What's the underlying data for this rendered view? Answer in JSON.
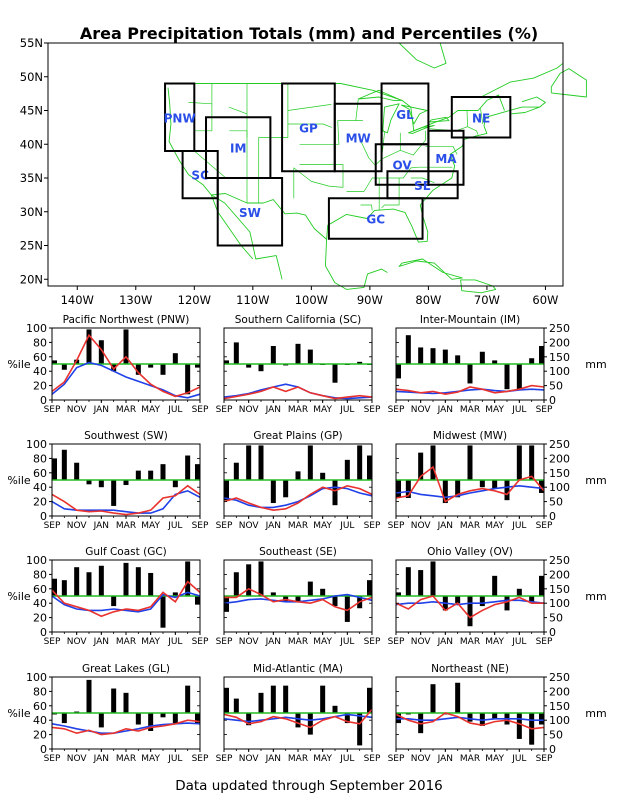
{
  "title": "Area Precipitation Totals (mm) and Percentiles (%)",
  "footer": "Data updated through September 2016",
  "colors": {
    "bar": "#000000",
    "percentile_line": "#e8322e",
    "normal_line": "#2040e8",
    "ref_line": "#22bb22",
    "map_lines": "#22cc22",
    "region_label": "#2a4ee8"
  },
  "map": {
    "lat_ticks": [
      "55N",
      "50N",
      "45N",
      "40N",
      "35N",
      "30N",
      "25N",
      "20N"
    ],
    "lon_ticks": [
      "140W",
      "130W",
      "120W",
      "110W",
      "100W",
      "90W",
      "80W",
      "70W",
      "60W"
    ],
    "regions": [
      {
        "code": "PNW",
        "lon": [
          -125,
          -120
        ],
        "lat": [
          39,
          49
        ]
      },
      {
        "code": "SC",
        "lon": [
          -122,
          -116
        ],
        "lat": [
          32,
          39
        ]
      },
      {
        "code": "IM",
        "lon": [
          -118,
          -107
        ],
        "lat": [
          35,
          44
        ]
      },
      {
        "code": "SW",
        "lon": [
          -116,
          -105
        ],
        "lat": [
          25,
          35
        ]
      },
      {
        "code": "GP",
        "lon": [
          -105,
          -96
        ],
        "lat": [
          36,
          49
        ]
      },
      {
        "code": "MW",
        "lon": [
          -96,
          -88
        ],
        "lat": [
          36,
          46
        ]
      },
      {
        "code": "GL",
        "lon": [
          -88,
          -80
        ],
        "lat": [
          40,
          49
        ]
      },
      {
        "code": "OV",
        "lon": [
          -89,
          -80
        ],
        "lat": [
          34,
          40
        ]
      },
      {
        "code": "SE",
        "lon": [
          -87,
          -75
        ],
        "lat": [
          32,
          36
        ]
      },
      {
        "code": "GC",
        "lon": [
          -97,
          -81
        ],
        "lat": [
          26,
          32
        ]
      },
      {
        "code": "MA",
        "lon": [
          -80,
          -74
        ],
        "lat": [
          34,
          42
        ]
      },
      {
        "code": "NE",
        "lon": [
          -76,
          -66
        ],
        "lat": [
          41,
          47
        ]
      }
    ]
  },
  "panel_axes": {
    "x_ticks": [
      "SEP",
      "NOV",
      "JAN",
      "MAR",
      "MAY",
      "JUL",
      "SEP"
    ],
    "left_ticks": [
      "0",
      "20",
      "40",
      "60",
      "80",
      "100"
    ],
    "right_ticks": [
      "0",
      "50",
      "100",
      "150",
      "200",
      "250"
    ],
    "left_label": "%ile",
    "right_label": "mm"
  },
  "chart_data": [
    {
      "type": "bar",
      "title": "Pacific Northwest (PNW)",
      "ylim": [
        0,
        100
      ],
      "y2lim": [
        0,
        250
      ],
      "bars": [
        55,
        42,
        56,
        98,
        83,
        40,
        98,
        35,
        45,
        35,
        65,
        8,
        45
      ],
      "percentile": [
        12,
        25,
        55,
        90,
        70,
        43,
        60,
        38,
        22,
        12,
        5,
        10,
        18
      ],
      "normal": [
        8,
        22,
        45,
        52,
        48,
        40,
        32,
        26,
        20,
        14,
        6,
        3,
        8
      ]
    },
    {
      "type": "bar",
      "title": "Southern California (SC)",
      "ylim": [
        0,
        100
      ],
      "y2lim": [
        0,
        250
      ],
      "bars": [
        55,
        80,
        45,
        40,
        75,
        48,
        78,
        70,
        50,
        24,
        50,
        53,
        50
      ],
      "percentile": [
        2,
        5,
        8,
        12,
        18,
        12,
        18,
        10,
        6,
        2,
        4,
        6,
        4
      ],
      "normal": [
        4,
        6,
        9,
        14,
        18,
        22,
        18,
        10,
        6,
        3,
        2,
        3,
        4
      ]
    },
    {
      "type": "bar",
      "title": "Inter-Mountain (IM)",
      "ylim": [
        0,
        100
      ],
      "y2lim": [
        0,
        250
      ],
      "bars": [
        30,
        90,
        73,
        72,
        70,
        62,
        23,
        67,
        55,
        15,
        15,
        58,
        75
      ],
      "percentile": [
        15,
        13,
        10,
        12,
        8,
        11,
        18,
        15,
        10,
        12,
        15,
        20,
        18
      ],
      "normal": [
        12,
        11,
        10,
        9,
        10,
        12,
        14,
        15,
        13,
        12,
        14,
        15,
        14
      ]
    },
    {
      "type": "bar",
      "title": "Southwest (SW)",
      "ylim": [
        0,
        100
      ],
      "y2lim": [
        0,
        250
      ],
      "bars": [
        80,
        92,
        74,
        44,
        40,
        14,
        43,
        63,
        63,
        72,
        40,
        84,
        72
      ],
      "percentile": [
        30,
        20,
        8,
        6,
        7,
        4,
        2,
        4,
        8,
        25,
        28,
        42,
        30
      ],
      "normal": [
        20,
        10,
        8,
        8,
        8,
        8,
        6,
        4,
        4,
        10,
        30,
        35,
        26
      ]
    },
    {
      "type": "bar",
      "title": "Great Plains (GP)",
      "ylim": [
        0,
        100
      ],
      "y2lim": [
        0,
        250
      ],
      "bars": [
        22,
        74,
        98,
        98,
        18,
        26,
        62,
        98,
        60,
        15,
        78,
        98,
        84
      ],
      "percentile": [
        20,
        25,
        18,
        12,
        8,
        10,
        18,
        30,
        40,
        35,
        42,
        38,
        30
      ],
      "normal": [
        25,
        22,
        15,
        12,
        12,
        15,
        20,
        28,
        38,
        40,
        38,
        32,
        28
      ]
    },
    {
      "type": "bar",
      "title": "Midwest (MW)",
      "ylim": [
        0,
        100
      ],
      "y2lim": [
        0,
        250
      ],
      "bars": [
        25,
        25,
        88,
        98,
        18,
        26,
        98,
        40,
        38,
        22,
        98,
        98,
        32
      ],
      "percentile": [
        25,
        28,
        55,
        68,
        20,
        30,
        35,
        38,
        35,
        30,
        50,
        55,
        35
      ],
      "normal": [
        32,
        34,
        30,
        28,
        26,
        28,
        32,
        35,
        38,
        40,
        42,
        40,
        38
      ]
    },
    {
      "type": "bar",
      "title": "Gulf Coast (GC)",
      "ylim": [
        0,
        100
      ],
      "y2lim": [
        0,
        250
      ],
      "bars": [
        74,
        72,
        90,
        83,
        92,
        36,
        96,
        90,
        82,
        6,
        55,
        98,
        38
      ],
      "percentile": [
        58,
        40,
        35,
        30,
        22,
        28,
        32,
        30,
        35,
        55,
        42,
        70,
        55
      ],
      "normal": [
        50,
        38,
        32,
        30,
        30,
        32,
        30,
        28,
        32,
        52,
        48,
        55,
        50
      ]
    },
    {
      "type": "bar",
      "title": "Southeast (SE)",
      "ylim": [
        0,
        100
      ],
      "y2lim": [
        0,
        250
      ],
      "bars": [
        28,
        83,
        94,
        98,
        55,
        42,
        42,
        70,
        60,
        36,
        14,
        33,
        72
      ],
      "percentile": [
        48,
        48,
        60,
        52,
        42,
        45,
        42,
        40,
        45,
        35,
        30,
        42,
        48
      ],
      "normal": [
        40,
        42,
        45,
        46,
        44,
        42,
        42,
        44,
        46,
        50,
        52,
        48,
        44
      ]
    },
    {
      "type": "bar",
      "title": "Ohio Valley (OV)",
      "ylim": [
        0,
        100
      ],
      "y2lim": [
        0,
        250
      ],
      "bars": [
        55,
        90,
        86,
        98,
        30,
        40,
        8,
        36,
        78,
        30,
        60,
        40,
        78
      ],
      "percentile": [
        40,
        32,
        45,
        50,
        30,
        40,
        20,
        30,
        38,
        42,
        48,
        40,
        40
      ],
      "normal": [
        38,
        40,
        40,
        42,
        40,
        38,
        40,
        40,
        42,
        44,
        44,
        42,
        40
      ]
    },
    {
      "type": "bar",
      "title": "Great Lakes (GL)",
      "ylim": [
        0,
        100
      ],
      "y2lim": [
        0,
        250
      ],
      "bars": [
        48,
        36,
        52,
        96,
        30,
        84,
        78,
        34,
        25,
        44,
        36,
        88,
        35
      ],
      "percentile": [
        30,
        28,
        22,
        26,
        20,
        22,
        28,
        25,
        30,
        32,
        35,
        40,
        38
      ],
      "normal": [
        35,
        32,
        28,
        25,
        22,
        22,
        25,
        28,
        32,
        34,
        35,
        36,
        35
      ]
    },
    {
      "type": "bar",
      "title": "Mid-Atlantic (MA)",
      "ylim": [
        0,
        100
      ],
      "y2lim": [
        0,
        250
      ],
      "bars": [
        85,
        70,
        33,
        78,
        88,
        88,
        30,
        20,
        88,
        60,
        36,
        5,
        85
      ],
      "percentile": [
        48,
        44,
        35,
        38,
        45,
        42,
        36,
        30,
        40,
        45,
        38,
        35,
        55
      ],
      "normal": [
        42,
        40,
        38,
        40,
        42,
        44,
        42,
        40,
        42,
        45,
        48,
        46,
        44
      ]
    },
    {
      "type": "bar",
      "title": "Northeast (NE)",
      "ylim": [
        0,
        100
      ],
      "y2lim": [
        0,
        250
      ],
      "bars": [
        36,
        48,
        22,
        90,
        48,
        92,
        38,
        32,
        42,
        34,
        14,
        6,
        34
      ],
      "percentile": [
        48,
        40,
        35,
        38,
        50,
        45,
        36,
        33,
        38,
        40,
        35,
        28,
        30
      ],
      "normal": [
        42,
        42,
        40,
        40,
        42,
        44,
        42,
        40,
        42,
        42,
        42,
        40,
        40
      ]
    }
  ]
}
